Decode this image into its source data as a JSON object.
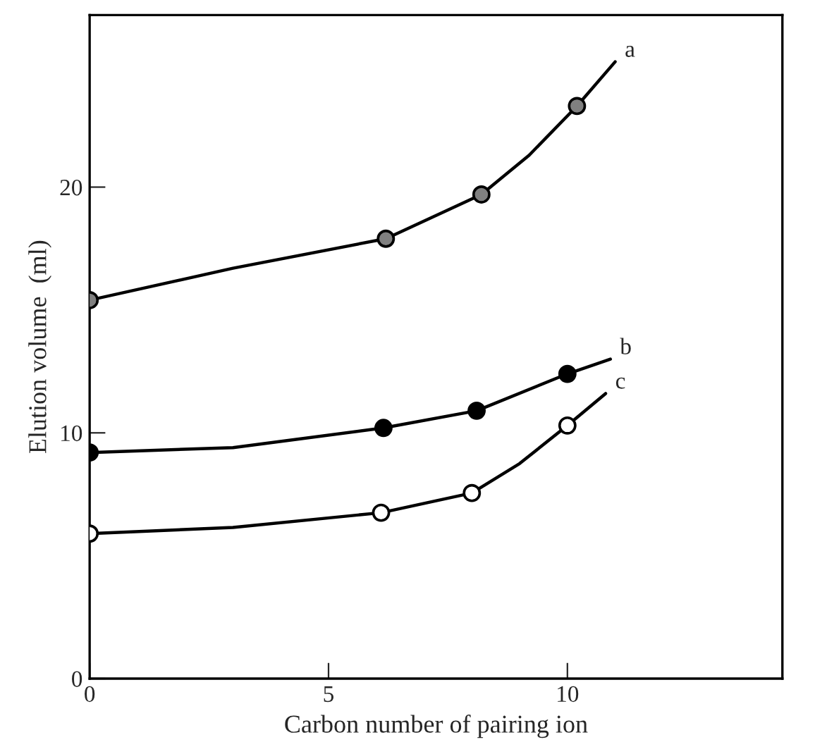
{
  "chart_data": {
    "type": "line",
    "xlabel": "Carbon number of pairing ion",
    "ylabel": "Elution volume  (ml)",
    "xlim": [
      0,
      14.5
    ],
    "ylim": [
      0,
      27
    ],
    "xticks": [
      0,
      5,
      10
    ],
    "yticks": [
      0,
      10,
      20
    ],
    "grid": false,
    "legend": false,
    "series": [
      {
        "name": "a",
        "color": "#000000",
        "marker": "none",
        "x": [
          0,
          3,
          6.2,
          8.2,
          9.2,
          10.2,
          11.0
        ],
        "values": [
          15.4,
          16.7,
          17.9,
          19.7,
          21.3,
          23.3,
          25.1
        ]
      },
      {
        "name": "b",
        "color": "#000000",
        "marker": "none",
        "x": [
          0,
          3,
          6.15,
          8.1,
          10.0,
          10.9
        ],
        "values": [
          9.2,
          9.4,
          10.2,
          10.9,
          12.4,
          13.0
        ]
      },
      {
        "name": "c",
        "color": "#000000",
        "marker": "none",
        "x": [
          0,
          3,
          6.1,
          8.0,
          9.0,
          10.0,
          10.8
        ],
        "values": [
          5.9,
          6.15,
          6.75,
          7.55,
          8.75,
          10.3,
          11.6
        ]
      },
      {
        "type": "scatter",
        "color": "#808080",
        "marker": "circle",
        "x": [
          0,
          6.2,
          8.2,
          10.2
        ],
        "values": [
          15.4,
          17.9,
          19.7,
          23.3
        ]
      },
      {
        "type": "scatter",
        "color": "#000000",
        "marker": "circle",
        "x": [
          0,
          6.15,
          8.1,
          10.0
        ],
        "values": [
          9.2,
          10.2,
          10.9,
          12.4
        ]
      },
      {
        "type": "scatter",
        "color": "#ffffff",
        "marker": "circle",
        "x": [
          0,
          6.1,
          8.0,
          10.0
        ],
        "values": [
          5.9,
          6.75,
          7.55,
          10.3
        ]
      }
    ]
  }
}
